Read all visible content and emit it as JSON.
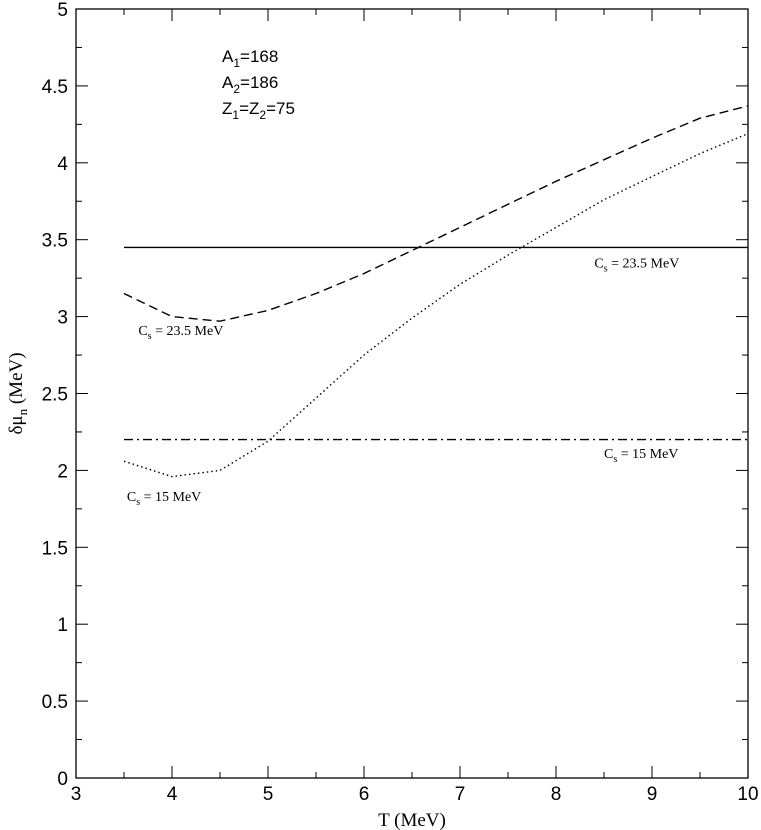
{
  "chart_data": {
    "type": "line",
    "xlabel": "T (MeV)",
    "ylabel": "δμ",
    "ylabel_sub": "n",
    "ylabel_unit": " (MeV)",
    "xlim": [
      3,
      10
    ],
    "ylim": [
      0,
      5
    ],
    "xticks": [
      "3",
      "4",
      "5",
      "6",
      "7",
      "8",
      "9",
      "10"
    ],
    "yticks": [
      "0",
      "0.5",
      "1",
      "1.5",
      "2",
      "2.5",
      "3",
      "3.5",
      "4",
      "4.5",
      "5"
    ],
    "series": [
      {
        "style": "solid",
        "points": [
          [
            3.5,
            3.45
          ],
          [
            10,
            3.45
          ]
        ]
      },
      {
        "style": "dashdot",
        "points": [
          [
            3.5,
            2.2
          ],
          [
            10,
            2.2
          ]
        ]
      },
      {
        "style": "dashed",
        "points": [
          [
            3.5,
            3.15
          ],
          [
            4.0,
            3.0
          ],
          [
            4.5,
            2.97
          ],
          [
            5.0,
            3.04
          ],
          [
            5.5,
            3.15
          ],
          [
            6.0,
            3.28
          ],
          [
            6.5,
            3.43
          ],
          [
            7.0,
            3.58
          ],
          [
            7.5,
            3.73
          ],
          [
            8.0,
            3.88
          ],
          [
            8.5,
            4.02
          ],
          [
            9.0,
            4.16
          ],
          [
            9.5,
            4.29
          ],
          [
            10.0,
            4.37
          ]
        ]
      },
      {
        "style": "dotted",
        "points": [
          [
            3.5,
            2.06
          ],
          [
            4.0,
            1.96
          ],
          [
            4.5,
            2.0
          ],
          [
            5.0,
            2.19
          ],
          [
            5.5,
            2.47
          ],
          [
            6.0,
            2.75
          ],
          [
            6.5,
            2.99
          ],
          [
            7.0,
            3.21
          ],
          [
            7.5,
            3.4
          ],
          [
            8.0,
            3.58
          ],
          [
            8.5,
            3.76
          ],
          [
            9.0,
            3.91
          ],
          [
            9.5,
            4.06
          ],
          [
            10.0,
            4.19
          ]
        ]
      }
    ],
    "annotations": [
      {
        "text": "C",
        "sub": "s",
        "rest": " = 23.5 MeV",
        "x": 8.4,
        "y": 3.32
      },
      {
        "text": "C",
        "sub": "s",
        "rest": " = 23.5 MeV",
        "x": 3.65,
        "y": 2.88
      },
      {
        "text": "C",
        "sub": "s",
        "rest": " = 15 MeV",
        "x": 8.5,
        "y": 2.08
      },
      {
        "text": "C",
        "sub": "s",
        "rest": " = 15 MeV",
        "x": 3.53,
        "y": 1.8
      }
    ],
    "parameters": [
      {
        "main": "A",
        "sub": "1",
        "rest": "=168"
      },
      {
        "main": "A",
        "sub": "2",
        "rest": "=186"
      },
      {
        "main": "Z",
        "sub": "1",
        "mid": "=Z",
        "sub2": "2",
        "rest": "=75"
      }
    ],
    "grid": false,
    "legend": "none"
  }
}
